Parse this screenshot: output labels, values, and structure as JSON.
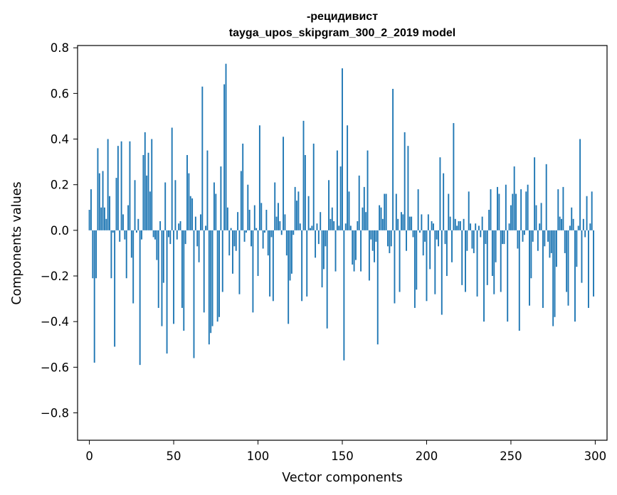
{
  "chart_data": {
    "type": "bar",
    "title": "-рецидивист",
    "subtitle": "tayga_upos_skipgram_300_2_2019 model",
    "xlabel": "Vector components",
    "ylabel": "Components values",
    "xlim": [
      -7,
      307
    ],
    "ylim": [
      -0.92,
      0.81
    ],
    "xticks": [
      0,
      50,
      100,
      150,
      200,
      250,
      300
    ],
    "xtick_labels": [
      "0",
      "50",
      "100",
      "150",
      "200",
      "250",
      "300"
    ],
    "yticks": [
      -0.8,
      -0.6,
      -0.4,
      -0.2,
      0.0,
      0.2,
      0.4,
      0.6,
      0.8
    ],
    "ytick_labels": [
      "−0.8",
      "−0.6",
      "−0.4",
      "−0.2",
      "0.0",
      "0.2",
      "0.4",
      "0.6",
      "0.8"
    ],
    "bar_color": "#1f77b4",
    "grid": false,
    "x": "0..299",
    "values": [
      0.09,
      0.18,
      -0.21,
      -0.58,
      -0.21,
      0.36,
      0.25,
      0.1,
      0.26,
      0.1,
      0.05,
      0.4,
      0.15,
      -0.21,
      -0.01,
      -0.51,
      0.23,
      0.37,
      -0.05,
      0.39,
      0.07,
      -0.04,
      -0.21,
      0.11,
      0.39,
      -0.12,
      -0.32,
      0.22,
      -0.01,
      0.05,
      -0.59,
      -0.04,
      0.33,
      0.43,
      0.24,
      0.34,
      0.17,
      0.4,
      -0.03,
      -0.04,
      -0.13,
      -0.34,
      0.04,
      -0.42,
      -0.23,
      0.21,
      -0.54,
      -0.03,
      -0.06,
      0.45,
      -0.41,
      0.22,
      -0.04,
      0.03,
      0.04,
      -0.34,
      -0.44,
      -0.06,
      0.33,
      0.25,
      0.15,
      0.14,
      -0.56,
      0.06,
      -0.07,
      -0.14,
      0.07,
      0.63,
      -0.36,
      0.02,
      0.35,
      -0.5,
      -0.45,
      -0.42,
      0.21,
      0.16,
      -0.4,
      -0.38,
      0.28,
      -0.27,
      0.64,
      0.73,
      0.1,
      -0.11,
      0.01,
      -0.19,
      -0.07,
      -0.09,
      0.08,
      -0.28,
      0.26,
      0.38,
      -0.05,
      -0.01,
      0.2,
      0.09,
      -0.07,
      -0.36,
      0.11,
      0.01,
      -0.2,
      0.46,
      0.12,
      -0.08,
      -0.01,
      0.09,
      -0.11,
      -0.29,
      -0.03,
      -0.31,
      0.21,
      0.06,
      0.12,
      0.04,
      -0.02,
      0.41,
      0.07,
      -0.11,
      -0.41,
      -0.22,
      -0.19,
      -0.02,
      0.19,
      0.13,
      0.17,
      0.03,
      -0.31,
      0.48,
      0.33,
      -0.29,
      0.15,
      0.01,
      0.02,
      0.38,
      -0.12,
      0.03,
      -0.06,
      0.08,
      -0.25,
      -0.17,
      -0.07,
      -0.43,
      0.22,
      0.05,
      0.1,
      0.04,
      -0.18,
      0.35,
      0.02,
      0.28,
      0.71,
      -0.57,
      0.03,
      0.46,
      0.17,
      0.02,
      -0.15,
      -0.18,
      -0.13,
      0.04,
      0.24,
      -0.18,
      0.1,
      0.19,
      0.08,
      0.35,
      -0.22,
      -0.04,
      -0.09,
      -0.14,
      -0.05,
      -0.5,
      0.11,
      0.1,
      0.05,
      0.16,
      0.16,
      -0.07,
      -0.1,
      -0.07,
      0.62,
      -0.32,
      0.16,
      0.05,
      -0.27,
      0.08,
      0.07,
      0.43,
      -0.09,
      0.37,
      0.06,
      0.06,
      -0.03,
      -0.34,
      -0.26,
      0.18,
      -0.01,
      0.07,
      -0.11,
      -0.05,
      -0.31,
      0.07,
      -0.17,
      0.04,
      0.03,
      -0.28,
      -0.04,
      -0.07,
      0.32,
      -0.37,
      0.25,
      -0.06,
      -0.2,
      0.16,
      0.06,
      -0.14,
      0.47,
      0.05,
      0.02,
      0.04,
      0.04,
      -0.24,
      0.05,
      -0.27,
      -0.09,
      0.17,
      0.03,
      -0.08,
      -0.1,
      0.03,
      -0.29,
      0.02,
      -0.03,
      0.06,
      -0.4,
      -0.06,
      -0.24,
      0.09,
      0.18,
      -0.2,
      -0.28,
      -0.14,
      0.19,
      0.16,
      -0.27,
      -0.06,
      -0.06,
      0.2,
      -0.4,
      0.03,
      0.11,
      0.16,
      0.28,
      0.16,
      -0.08,
      -0.44,
      0.18,
      -0.05,
      -0.02,
      0.17,
      0.2,
      -0.33,
      -0.21,
      -0.05,
      0.32,
      0.11,
      -0.09,
      0.03,
      0.12,
      -0.34,
      -0.07,
      0.29,
      -0.05,
      -0.12,
      -0.1,
      -0.42,
      -0.38,
      -0.16,
      0.18,
      0.06,
      0.05,
      0.19,
      -0.1,
      -0.27,
      -0.33,
      0.02,
      0.1,
      0.05,
      -0.4,
      -0.16,
      0.02,
      0.4,
      -0.23,
      0.05,
      -0.03,
      0.15,
      -0.34,
      0.03,
      0.17,
      -0.29
    ]
  }
}
